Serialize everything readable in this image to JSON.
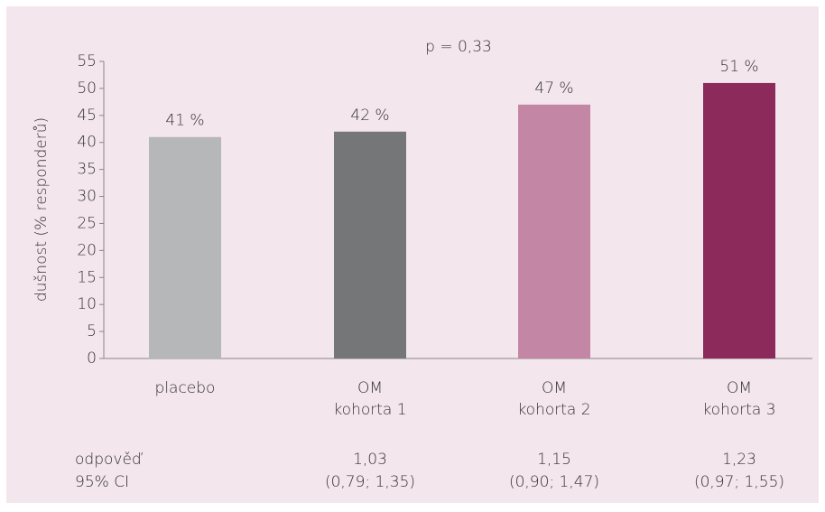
{
  "chart_data": {
    "type": "bar",
    "annotation": "p = 0,33",
    "y_label": "dušnost (% responderů)",
    "categories": [
      "placebo",
      "OM\nkohorta 1",
      "OM\nkohorta 2",
      "OM\nkohorta 3"
    ],
    "values": [
      41,
      42,
      47,
      51
    ],
    "value_labels": [
      "41 %",
      "42 %",
      "47 %",
      "51 %"
    ],
    "colors": [
      "#b6b7b8",
      "#757677",
      "#c386a4",
      "#8b2a5b"
    ],
    "ylim": [
      0,
      55
    ],
    "yticks": [
      0,
      5,
      10,
      15,
      20,
      25,
      30,
      35,
      40,
      45,
      50,
      55
    ],
    "table_rows": [
      {
        "label": "odpověď",
        "values": [
          null,
          "1,03",
          "1,15",
          "1,23"
        ]
      },
      {
        "label": "95% CI",
        "values": [
          null,
          "(0,79; 1,35)",
          "(0,90; 1,47)",
          "(0,97; 1,55)"
        ]
      }
    ]
  }
}
